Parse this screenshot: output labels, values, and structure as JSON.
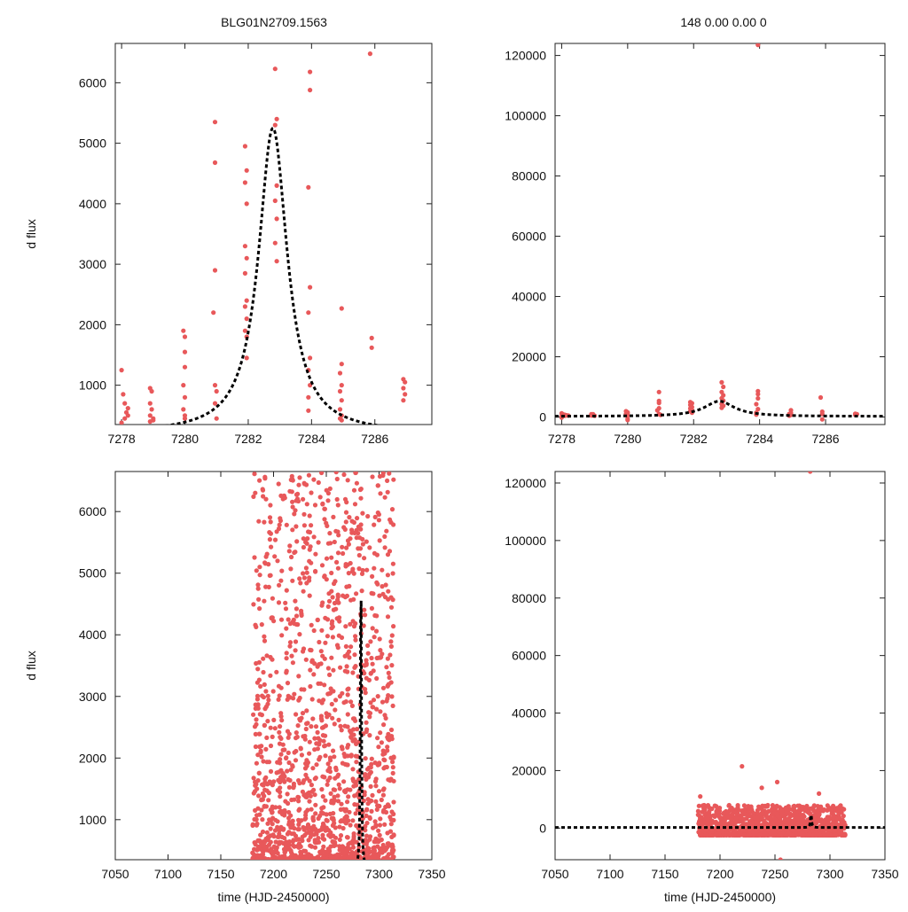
{
  "figure": {
    "left_title": "BLG01N2709.1563",
    "right_title": "148  0.00  0.00  0"
  },
  "chart_data": [
    {
      "id": "top_left",
      "type": "scatter",
      "title": "BLG01N2709.1563",
      "xlabel": "",
      "ylabel": "d flux",
      "xlim": [
        7277.8,
        7287.8
      ],
      "ylim": [
        350,
        6650
      ],
      "xticks": [
        7278,
        7280,
        7282,
        7284,
        7286
      ],
      "yticks": [
        1000,
        2000,
        3000,
        4000,
        5000,
        6000
      ],
      "model": {
        "t0": 7282.78,
        "tE": 0.55,
        "base": 200,
        "amp": 5050,
        "shape": "lorentzian"
      },
      "points": [
        [
          7278.0,
          1250
        ],
        [
          7278.05,
          850
        ],
        [
          7278.1,
          700
        ],
        [
          7278.15,
          550
        ],
        [
          7278.2,
          620
        ],
        [
          7278.1,
          450
        ],
        [
          7278.0,
          380
        ],
        [
          7278.2,
          500
        ],
        [
          7278.9,
          950
        ],
        [
          7278.95,
          900
        ],
        [
          7278.9,
          700
        ],
        [
          7278.95,
          600
        ],
        [
          7278.9,
          500
        ],
        [
          7279.0,
          450
        ],
        [
          7278.9,
          400
        ],
        [
          7279.0,
          420
        ],
        [
          7279.95,
          1900
        ],
        [
          7280.0,
          1800
        ],
        [
          7280.0,
          1550
        ],
        [
          7280.0,
          1300
        ],
        [
          7279.95,
          1000
        ],
        [
          7280.0,
          800
        ],
        [
          7279.95,
          600
        ],
        [
          7280.0,
          500
        ],
        [
          7280.0,
          450
        ],
        [
          7280.95,
          5350
        ],
        [
          7280.95,
          4680
        ],
        [
          7280.95,
          2900
        ],
        [
          7280.9,
          2200
        ],
        [
          7280.95,
          1000
        ],
        [
          7281.0,
          900
        ],
        [
          7280.95,
          700
        ],
        [
          7281.0,
          450
        ],
        [
          7281.9,
          4950
        ],
        [
          7281.95,
          4550
        ],
        [
          7281.9,
          4350
        ],
        [
          7281.95,
          4000
        ],
        [
          7281.9,
          3300
        ],
        [
          7281.95,
          3100
        ],
        [
          7281.9,
          2850
        ],
        [
          7281.95,
          2400
        ],
        [
          7281.9,
          2300
        ],
        [
          7281.95,
          2100
        ],
        [
          7281.9,
          1900
        ],
        [
          7281.95,
          1800
        ],
        [
          7281.95,
          1450
        ],
        [
          7282.85,
          6230
        ],
        [
          7282.9,
          5400
        ],
        [
          7282.85,
          5300
        ],
        [
          7282.9,
          4300
        ],
        [
          7282.85,
          4050
        ],
        [
          7282.9,
          3750
        ],
        [
          7282.85,
          3350
        ],
        [
          7282.9,
          3050
        ],
        [
          7283.95,
          6180
        ],
        [
          7283.95,
          5880
        ],
        [
          7283.9,
          4270
        ],
        [
          7283.95,
          2620
        ],
        [
          7283.9,
          2200
        ],
        [
          7283.95,
          1450
        ],
        [
          7283.9,
          1250
        ],
        [
          7283.95,
          1000
        ],
        [
          7283.9,
          800
        ],
        [
          7283.9,
          580
        ],
        [
          7284.95,
          2270
        ],
        [
          7284.95,
          1350
        ],
        [
          7284.9,
          1200
        ],
        [
          7284.95,
          1000
        ],
        [
          7284.9,
          900
        ],
        [
          7284.95,
          750
        ],
        [
          7284.9,
          600
        ],
        [
          7284.95,
          500
        ],
        [
          7284.9,
          450
        ],
        [
          7284.95,
          420
        ],
        [
          7285.85,
          6480
        ],
        [
          7285.9,
          1780
        ],
        [
          7285.9,
          1620
        ],
        [
          7286.9,
          1100
        ],
        [
          7286.95,
          1050
        ],
        [
          7286.9,
          950
        ],
        [
          7286.95,
          850
        ],
        [
          7286.9,
          750
        ]
      ]
    },
    {
      "id": "top_right",
      "type": "scatter",
      "title": "148  0.00  0.00  0",
      "xlabel": "",
      "ylabel": "",
      "xlim": [
        7277.8,
        7287.8
      ],
      "ylim": [
        -2500,
        124000
      ],
      "xticks": [
        7278,
        7280,
        7282,
        7284,
        7286
      ],
      "yticks": [
        0,
        20000,
        40000,
        60000,
        80000,
        100000,
        120000
      ],
      "model": {
        "t0": 7282.78,
        "tE": 0.55,
        "base": 200,
        "amp": 5050,
        "shape": "lorentzian"
      },
      "points": [
        [
          7278.0,
          1250
        ],
        [
          7278.05,
          850
        ],
        [
          7278.1,
          700
        ],
        [
          7278.15,
          550
        ],
        [
          7278.1,
          450
        ],
        [
          7278.0,
          380
        ],
        [
          7278.2,
          500
        ],
        [
          7278.0,
          -200
        ],
        [
          7278.9,
          950
        ],
        [
          7278.95,
          900
        ],
        [
          7278.9,
          700
        ],
        [
          7278.95,
          600
        ],
        [
          7278.9,
          500
        ],
        [
          7279.0,
          420
        ],
        [
          7279.95,
          1900
        ],
        [
          7280.0,
          1550
        ],
        [
          7280.0,
          1300
        ],
        [
          7279.95,
          1000
        ],
        [
          7280.0,
          600
        ],
        [
          7280.0,
          -600
        ],
        [
          7280.0,
          -1000
        ],
        [
          7280.95,
          8300
        ],
        [
          7280.95,
          5350
        ],
        [
          7280.95,
          4680
        ],
        [
          7280.95,
          2900
        ],
        [
          7280.9,
          2200
        ],
        [
          7280.95,
          1000
        ],
        [
          7281.0,
          700
        ],
        [
          7281.9,
          4950
        ],
        [
          7281.95,
          4550
        ],
        [
          7281.9,
          4000
        ],
        [
          7281.95,
          3300
        ],
        [
          7281.9,
          2850
        ],
        [
          7281.95,
          2300
        ],
        [
          7281.9,
          1900
        ],
        [
          7281.95,
          1450
        ],
        [
          7282.85,
          11500
        ],
        [
          7282.9,
          10000
        ],
        [
          7282.85,
          8300
        ],
        [
          7282.9,
          7200
        ],
        [
          7282.85,
          6230
        ],
        [
          7282.9,
          5400
        ],
        [
          7282.85,
          4300
        ],
        [
          7282.9,
          3750
        ],
        [
          7282.85,
          3050
        ],
        [
          7283.95,
          123500
        ],
        [
          7283.95,
          8600
        ],
        [
          7283.95,
          7600
        ],
        [
          7283.95,
          6180
        ],
        [
          7283.9,
          4270
        ],
        [
          7283.95,
          2620
        ],
        [
          7283.9,
          1450
        ],
        [
          7283.9,
          800
        ],
        [
          7284.95,
          2270
        ],
        [
          7284.95,
          1350
        ],
        [
          7284.9,
          1000
        ],
        [
          7284.95,
          750
        ],
        [
          7284.9,
          450
        ],
        [
          7285.85,
          6480
        ],
        [
          7285.9,
          1780
        ],
        [
          7285.9,
          1000
        ],
        [
          7285.9,
          -800
        ],
        [
          7286.9,
          1100
        ],
        [
          7286.95,
          950
        ],
        [
          7286.9,
          750
        ]
      ]
    },
    {
      "id": "bottom_left",
      "type": "scatter",
      "title": "",
      "xlabel": "time (HJD-2450000)",
      "ylabel": "d flux",
      "xlim": [
        7050,
        7350
      ],
      "ylim": [
        350,
        6650
      ],
      "xticks": [
        7050,
        7100,
        7150,
        7200,
        7250,
        7300,
        7350
      ],
      "yticks": [
        1000,
        2000,
        3000,
        4000,
        5000,
        6000
      ],
      "model": {
        "t0": 7282.78,
        "tE": 0.55,
        "base": 200,
        "amp": 5050,
        "shape": "lorentzian"
      },
      "generated_cloud": {
        "tmin": 7180,
        "tmax": 7314,
        "seed": 11,
        "count": 1600,
        "fmin": 350,
        "fmax": 6650
      }
    },
    {
      "id": "bottom_right",
      "type": "scatter",
      "title": "",
      "xlabel": "time (HJD-2450000)",
      "ylabel": "",
      "xlim": [
        7050,
        7350
      ],
      "ylim": [
        -11000,
        124000
      ],
      "xticks": [
        7050,
        7100,
        7150,
        7200,
        7250,
        7300,
        7350
      ],
      "yticks": [
        0,
        20000,
        40000,
        60000,
        80000,
        100000,
        120000
      ],
      "model": {
        "t0": 7282.78,
        "tE": 0.55,
        "base": 200,
        "amp": 5050,
        "shape": "lorentzian"
      },
      "points": [
        [
          7282,
          124000
        ],
        [
          7220,
          21500
        ],
        [
          7255,
          -11000
        ],
        [
          7252,
          16000
        ],
        [
          7238,
          14000
        ],
        [
          7182,
          11000
        ],
        [
          7290,
          12000
        ]
      ],
      "generated_cloud": {
        "tmin": 7180,
        "tmax": 7314,
        "seed": 23,
        "count": 1300,
        "fmin": -2500,
        "fmax": 8000
      }
    }
  ]
}
